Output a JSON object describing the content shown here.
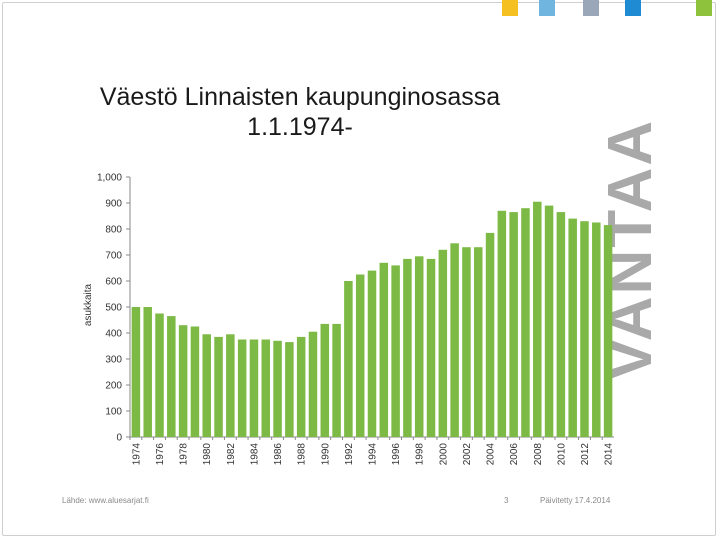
{
  "colors": {
    "bar": "#7cba45",
    "square_1": "#f5c022",
    "square_2": "#6fb5e0",
    "square_3": "#9aa7b8",
    "square_4": "#1f8bd2",
    "square_5": "#8fc23c",
    "brand": "#a9a9a9"
  },
  "slide": {
    "brand_text": "VANTAA",
    "title_line1": "Väestö Linnaisten kaupunginosassa",
    "title_line2": "1.1.1974-"
  },
  "footer": {
    "source": "Lähde: www.aluesarjat.fi",
    "page_number": "3",
    "updated": "Päivitetty 17.4.2014"
  },
  "chart_data": {
    "type": "bar",
    "ylabel": "asukkaita",
    "ylim": [
      0,
      1000
    ],
    "yticks": [
      0,
      100,
      200,
      300,
      400,
      500,
      600,
      700,
      800,
      900,
      1000
    ],
    "ytick_labels": [
      "0",
      "100",
      "200",
      "300",
      "400",
      "500",
      "600",
      "700",
      "800",
      "900",
      "1,000"
    ],
    "grid": false,
    "categories": [
      "1974",
      "1975",
      "1976",
      "1977",
      "1978",
      "1979",
      "1980",
      "1981",
      "1982",
      "1983",
      "1984",
      "1985",
      "1986",
      "1987",
      "1988",
      "1989",
      "1990",
      "1991",
      "1992",
      "1993",
      "1994",
      "1995",
      "1996",
      "1997",
      "1998",
      "1999",
      "2000",
      "2001",
      "2002",
      "2003",
      "2004",
      "2005",
      "2006",
      "2007",
      "2008",
      "2009",
      "2010",
      "2011",
      "2012",
      "2013",
      "2014"
    ],
    "tick_labels": [
      "1974",
      "",
      "1976",
      "",
      "1978",
      "",
      "1980",
      "",
      "1982",
      "",
      "1984",
      "",
      "1986",
      "",
      "1988",
      "",
      "1990",
      "",
      "1992",
      "",
      "1994",
      "",
      "1996",
      "",
      "1998",
      "",
      "2000",
      "",
      "2002",
      "",
      "2004",
      "",
      "2006",
      "",
      "2008",
      "",
      "2010",
      "",
      "2012",
      "",
      "2014"
    ],
    "values": [
      500,
      500,
      475,
      465,
      430,
      425,
      395,
      385,
      395,
      375,
      375,
      375,
      370,
      365,
      385,
      405,
      435,
      435,
      600,
      625,
      640,
      670,
      660,
      685,
      695,
      685,
      720,
      745,
      730,
      730,
      785,
      870,
      865,
      880,
      905,
      890,
      865,
      840,
      830,
      825,
      815
    ]
  }
}
